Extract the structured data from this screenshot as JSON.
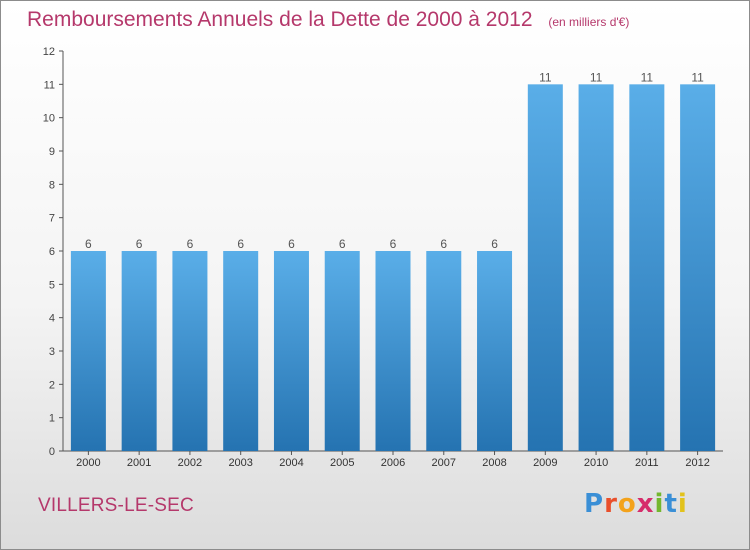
{
  "header": {
    "title": "Remboursements Annuels de la Dette de 2000 à 2012",
    "unit": "(en milliers d'€)"
  },
  "footer": {
    "commune": "VILLERS-LE-SEC",
    "logo": [
      "P",
      "r",
      "o",
      "x",
      "i",
      "t",
      "i"
    ],
    "logo_colors": [
      "#3a8fd6",
      "#e94f2b",
      "#f3a21b",
      "#d62d6b",
      "#74b72e",
      "#3a8fd6",
      "#e2c21c"
    ]
  },
  "colors": {
    "bar_top": "#5aaee8",
    "bar_bottom": "#2573b1",
    "text": "#b5386b"
  },
  "chart_data": {
    "type": "bar",
    "categories": [
      "2000",
      "2001",
      "2002",
      "2003",
      "2004",
      "2005",
      "2006",
      "2007",
      "2008",
      "2009",
      "2010",
      "2011",
      "2012"
    ],
    "values": [
      6,
      6,
      6,
      6,
      6,
      6,
      6,
      6,
      6,
      11,
      11,
      11,
      11
    ],
    "title": "Remboursements Annuels de la Dette de 2000 à 2012",
    "xlabel": "",
    "ylabel": "",
    "ylim": [
      0,
      12
    ],
    "yticks": [
      0,
      1,
      2,
      3,
      4,
      5,
      6,
      7,
      8,
      9,
      10,
      11,
      12
    ],
    "grid": false,
    "data_labels": true
  }
}
